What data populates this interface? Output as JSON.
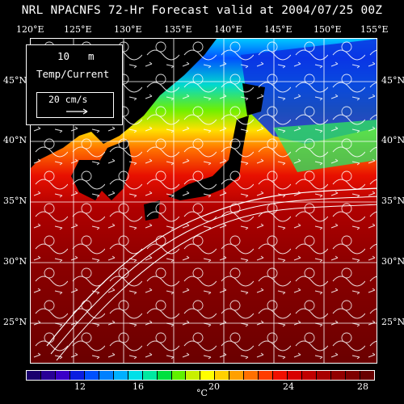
{
  "title": "NRL NPACNFS 72-Hr Forecast valid at 2004/07/25 00Z",
  "lon_labels": [
    "120°E",
    "125°E",
    "130°E",
    "135°E",
    "140°E",
    "145°E",
    "150°E",
    "155°E"
  ],
  "lat_labels": [
    "45°N",
    "40°N",
    "35°N",
    "30°N",
    "25°N"
  ],
  "legend": {
    "level": "10",
    "level_unit": "m",
    "field": "Temp/Current",
    "vector_scale": "20 cm/s"
  },
  "colorbar": {
    "colors": [
      "#1a006e",
      "#280096",
      "#3a00c8",
      "#0a1ee0",
      "#0050ff",
      "#0080ff",
      "#00b0ff",
      "#00e0e8",
      "#00e8a0",
      "#00e040",
      "#60f000",
      "#c8f000",
      "#ffff00",
      "#ffd000",
      "#ffa000",
      "#ff7000",
      "#ff3c00",
      "#f01000",
      "#d80000",
      "#c00000",
      "#a80000",
      "#920000",
      "#7e0000",
      "#680000"
    ],
    "tick_labels": [
      "12",
      "16",
      "20",
      "24",
      "28"
    ],
    "unit": "°C"
  },
  "colors": {
    "land": "#000000",
    "frame": "#ffffff",
    "ocean_warm": "#8a0000"
  }
}
